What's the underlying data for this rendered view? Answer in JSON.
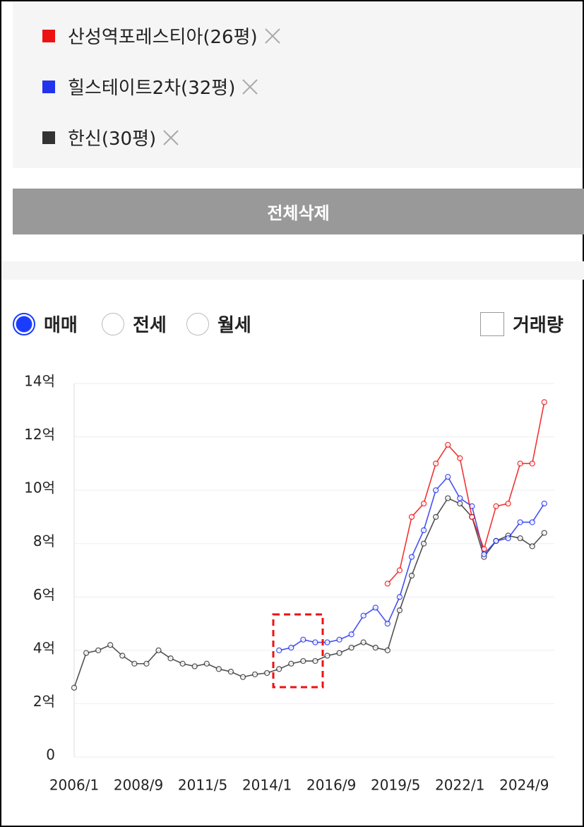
{
  "button": "전체삭제",
  "trade_types": [
    "매매",
    "전세",
    "월세"
  ],
  "selected_trade_type": 0,
  "volume_checkbox": "거래량",
  "chart_data": {
    "type": "line",
    "x": [
      "2006/1",
      "2006/7",
      "2007/1",
      "2007/7",
      "2008/1",
      "2008/7",
      "2009/1",
      "2009/7",
      "2010/1",
      "2010/7",
      "2011/1",
      "2011/7",
      "2012/1",
      "2012/7",
      "2013/1",
      "2013/7",
      "2014/1",
      "2014/7",
      "2015/1",
      "2015/7",
      "2016/1",
      "2016/7",
      "2017/1",
      "2017/7",
      "2018/1",
      "2018/7",
      "2019/1",
      "2019/7",
      "2020/1",
      "2020/7",
      "2021/1",
      "2021/7",
      "2022/1",
      "2022/7",
      "2023/1",
      "2023/7",
      "2024/1",
      "2024/7",
      "2025/1",
      "2025/7"
    ],
    "xlim": [
      "2006/1",
      "2025/12"
    ],
    "xticks": [
      "2006/1",
      "2008/9",
      "2011/5",
      "2014/1",
      "2016/9",
      "2019/5",
      "2022/1",
      "2024/9"
    ],
    "ylim": [
      0,
      14
    ],
    "yticks": [
      0,
      {
        "value": 2,
        "label": "2억"
      },
      {
        "value": 4,
        "label": "4억"
      },
      {
        "value": 6,
        "label": "6억"
      },
      {
        "value": 8,
        "label": "8억"
      },
      {
        "value": 10,
        "label": "10억"
      },
      {
        "value": 12,
        "label": "12억"
      },
      {
        "value": 14,
        "label": "14억"
      }
    ],
    "grid": true,
    "series": [
      {
        "name": "산성역포레스티아(26평)",
        "color": "#ee1111",
        "values": [
          null,
          null,
          null,
          null,
          null,
          null,
          null,
          null,
          null,
          null,
          null,
          null,
          null,
          null,
          null,
          null,
          null,
          null,
          null,
          null,
          null,
          null,
          null,
          null,
          null,
          null,
          6.5,
          7.0,
          9.0,
          9.5,
          11.0,
          11.7,
          11.2,
          9.0,
          7.8,
          9.4,
          9.5,
          11.0,
          11.0,
          13.3
        ]
      },
      {
        "name": "힐스테이트2차(32평)",
        "color": "#2233ee",
        "values": [
          null,
          null,
          null,
          null,
          null,
          null,
          null,
          null,
          null,
          null,
          null,
          null,
          null,
          null,
          null,
          null,
          null,
          4.0,
          4.1,
          4.4,
          4.3,
          4.3,
          4.4,
          4.6,
          5.3,
          5.6,
          5.0,
          6.0,
          7.5,
          8.5,
          10.0,
          10.5,
          9.7,
          9.4,
          7.6,
          8.1,
          8.2,
          8.8,
          8.8,
          9.5
        ]
      },
      {
        "name": "한신(30평)",
        "color": "#333333",
        "values": [
          2.6,
          3.9,
          4.0,
          4.2,
          3.8,
          3.5,
          3.5,
          4.0,
          3.7,
          3.5,
          3.4,
          3.5,
          3.3,
          3.2,
          3.0,
          3.1,
          3.15,
          3.3,
          3.5,
          3.6,
          3.6,
          3.8,
          3.9,
          4.1,
          4.3,
          4.1,
          4.0,
          5.5,
          6.8,
          8.0,
          9.0,
          9.7,
          9.5,
          9.0,
          7.5,
          8.1,
          8.3,
          8.2,
          7.9,
          8.4
        ]
      }
    ]
  }
}
